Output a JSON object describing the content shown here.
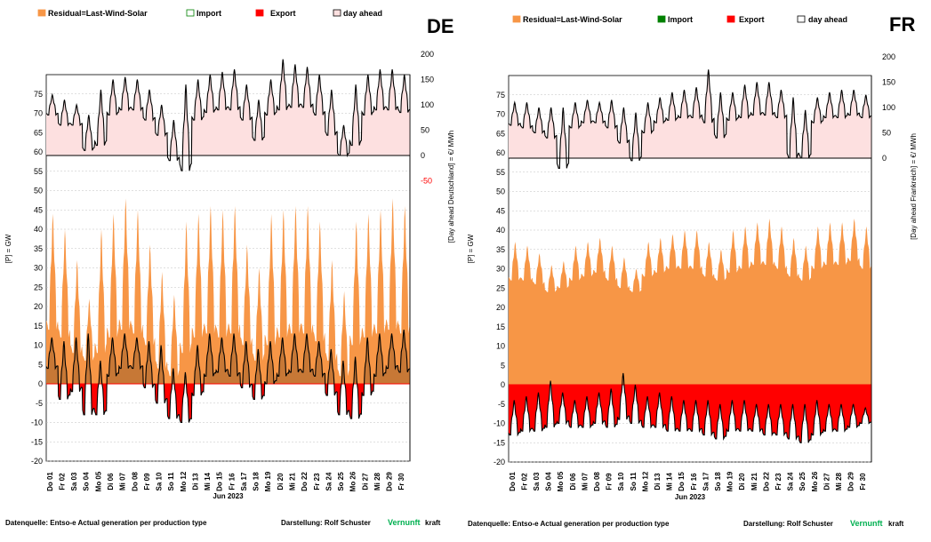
{
  "chart_data": [
    {
      "type": "area",
      "country_code": "DE",
      "legend": [
        "Residual=Last-Wind-Solar",
        "Import",
        "Export",
        "day ahead"
      ],
      "ylabel": "[P] = GW",
      "y2label": "[Day ahead Deutschland] = €/ MWh",
      "xlabel": "Jun 2023",
      "ylim": [
        -20,
        80
      ],
      "y_ticks": [
        -20,
        -15,
        -10,
        -5,
        0,
        5,
        10,
        15,
        20,
        25,
        30,
        35,
        40,
        45,
        50,
        55,
        60,
        65,
        70,
        75
      ],
      "y2_ticks": [
        -50,
        0,
        50,
        100,
        150,
        200
      ],
      "x_labels": [
        "Do 01",
        "Fr 02",
        "Sa 03",
        "So 04",
        "Mo 05",
        "Di 06",
        "Mi 07",
        "Do 08",
        "Fr 09",
        "Sa 10",
        "So 11",
        "Mo 12",
        "Di 13",
        "Mi 14",
        "Do 15",
        "Fr 16",
        "Sa 17",
        "So 18",
        "Mo 19",
        "Di 20",
        "Mi 21",
        "Do 22",
        "Fr 23",
        "Sa 24",
        "So 25",
        "Mo 26",
        "Di 27",
        "Mi 28",
        "Do 29",
        "Fr 30"
      ],
      "residual_daily_gw": {
        "peak": [
          44,
          40,
          32,
          22,
          40,
          44,
          48,
          45,
          36,
          29,
          23,
          42,
          44,
          46,
          45,
          46,
          36,
          30,
          44,
          45,
          46,
          46,
          42,
          32,
          24,
          42,
          44,
          45,
          48,
          46
        ],
        "trough": [
          14,
          12,
          8,
          6,
          8,
          12,
          14,
          13,
          10,
          4,
          2,
          8,
          12,
          13,
          12,
          13,
          10,
          6,
          10,
          12,
          13,
          13,
          11,
          6,
          2,
          10,
          12,
          13,
          14,
          13
        ]
      },
      "net_daily_gw": {
        "peak": [
          12,
          11,
          12,
          13,
          6,
          12,
          13,
          12,
          11,
          10,
          4,
          3,
          10,
          13,
          12,
          13,
          11,
          9,
          11,
          12,
          13,
          13,
          11,
          9,
          6,
          7,
          12,
          13,
          13,
          14
        ],
        "trough": [
          4,
          -4,
          -2,
          -8,
          -8,
          2,
          4,
          4,
          -1,
          -5,
          -9,
          -10,
          -3,
          2,
          3,
          2,
          -1,
          -4,
          0,
          2,
          3,
          3,
          2,
          -3,
          -8,
          -9,
          -3,
          2,
          4,
          3
        ]
      },
      "price_daily_eur_mwh": {
        "peak": [
          120,
          110,
          100,
          80,
          130,
          150,
          155,
          150,
          130,
          100,
          70,
          140,
          150,
          160,
          165,
          170,
          140,
          110,
          150,
          190,
          180,
          175,
          160,
          130,
          60,
          140,
          160,
          170,
          170,
          160
        ],
        "trough": [
          80,
          60,
          60,
          10,
          20,
          80,
          90,
          90,
          70,
          40,
          -10,
          -30,
          70,
          85,
          90,
          90,
          70,
          30,
          80,
          90,
          95,
          95,
          80,
          40,
          0,
          20,
          80,
          90,
          90,
          85
        ]
      }
    },
    {
      "type": "area",
      "country_code": "FR",
      "legend": [
        "Residual=Last-Wind-Solar",
        "Import",
        "Export",
        "day ahead"
      ],
      "ylabel": "[P] = GW",
      "y2label": "[Day ahead Frankreich] = €/ MWh",
      "xlabel": "Jun 2023",
      "ylim": [
        -20,
        80
      ],
      "y_ticks": [
        -20,
        -15,
        -10,
        -5,
        0,
        5,
        10,
        15,
        20,
        25,
        30,
        35,
        40,
        45,
        50,
        55,
        60,
        65,
        70,
        75
      ],
      "y2_ticks": [
        0,
        50,
        100,
        150,
        200
      ],
      "x_labels": [
        "Do 01",
        "Fr 02",
        "Sa 03",
        "So 04",
        "Mo 05",
        "Di 06",
        "Mi 07",
        "Do 08",
        "Fr 09",
        "Sa 10",
        "So 11",
        "Mo 12",
        "Di 13",
        "Mi 14",
        "Do 15",
        "Fr 16",
        "Sa 17",
        "So 18",
        "Mo 19",
        "Di 20",
        "Mi 21",
        "Do 22",
        "Fr 23",
        "Sa 24",
        "So 25",
        "Mo 26",
        "Di 27",
        "Mi 28",
        "Do 29",
        "Fr 30"
      ],
      "residual_daily_gw": {
        "peak": [
          37,
          36,
          34,
          31,
          32,
          36,
          37,
          38,
          36,
          33,
          30,
          37,
          38,
          39,
          40,
          40,
          37,
          35,
          40,
          41,
          42,
          43,
          41,
          38,
          36,
          41,
          42,
          42,
          43,
          41
        ],
        "trough": [
          27,
          27,
          26,
          24,
          25,
          27,
          28,
          29,
          27,
          25,
          24,
          28,
          29,
          30,
          30,
          30,
          28,
          27,
          29,
          30,
          31,
          31,
          30,
          28,
          27,
          30,
          31,
          31,
          32,
          30
        ]
      },
      "net_daily_gw": {
        "peak": [
          -4,
          -3,
          -2,
          1,
          -2,
          -4,
          -3,
          -2,
          -1,
          3,
          0,
          -3,
          -2,
          -3,
          -4,
          -4,
          -4,
          -5,
          -4,
          -4,
          -5,
          -5,
          -5,
          -5,
          -5,
          -4,
          -5,
          -5,
          -5,
          -6
        ],
        "trough": [
          -13,
          -12,
          -12,
          -11,
          -10,
          -11,
          -11,
          -10,
          -11,
          -9,
          -10,
          -11,
          -11,
          -12,
          -12,
          -12,
          -13,
          -14,
          -12,
          -12,
          -12,
          -13,
          -13,
          -14,
          -15,
          -13,
          -12,
          -12,
          -11,
          -10
        ]
      },
      "price_daily_eur_mwh": {
        "peak": [
          110,
          110,
          100,
          100,
          100,
          110,
          115,
          110,
          115,
          100,
          90,
          110,
          120,
          130,
          135,
          140,
          175,
          130,
          130,
          145,
          150,
          150,
          135,
          120,
          95,
          120,
          130,
          135,
          135,
          125
        ],
        "trough": [
          65,
          60,
          50,
          40,
          -20,
          60,
          70,
          70,
          60,
          30,
          -5,
          50,
          70,
          75,
          80,
          80,
          70,
          40,
          75,
          80,
          85,
          85,
          80,
          0,
          0,
          70,
          80,
          80,
          85,
          80
        ]
      }
    }
  ],
  "footer": {
    "source_left": "Datenquelle: Entso-e Actual generation per production type",
    "author_left": "Darstellung: Rolf Schuster",
    "brand_left_a": "Vernunft",
    "brand_left_b": "kraft",
    "source_right": "Datenquelle: Entso-e Actual generation per production type",
    "author_right": "Darstellung: Rolf Schuster",
    "brand_right_a": "Vernunft",
    "brand_right_b": "kraft"
  },
  "colors": {
    "residual": "#f79646",
    "import": "#008000",
    "export": "#ff0000",
    "dayahead_fill": "#fde0e0",
    "line": "#000000",
    "grid": "#c0c0c0",
    "brand": "#00b050"
  }
}
